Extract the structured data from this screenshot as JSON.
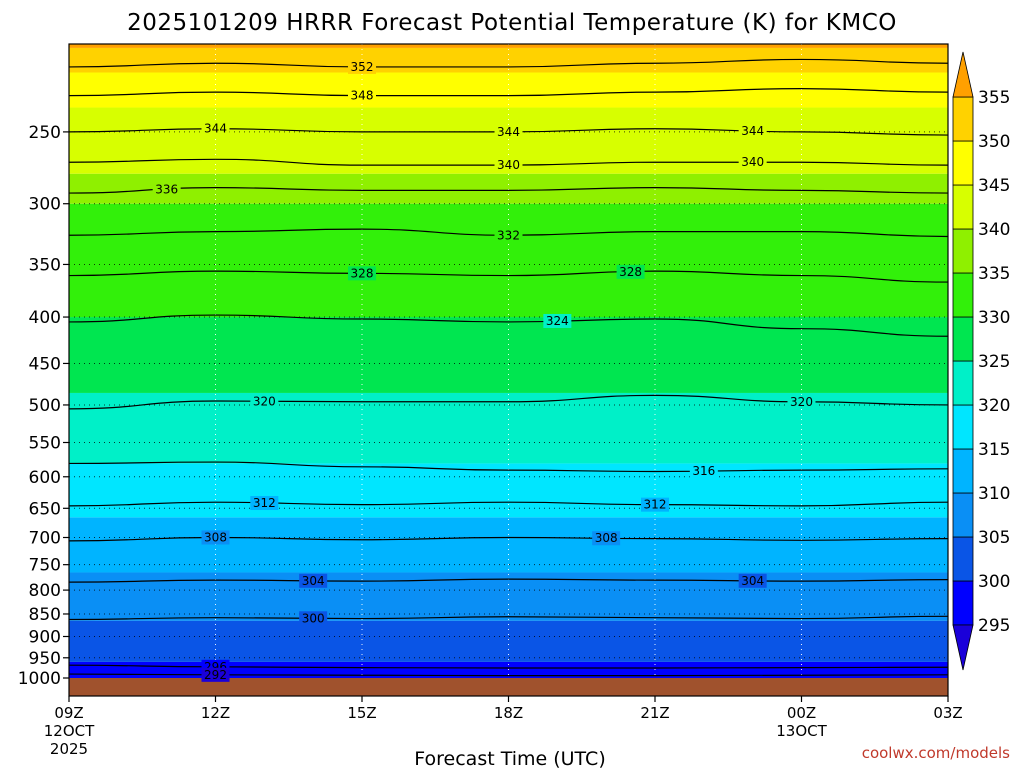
{
  "chart_data": {
    "type": "time-height contour",
    "title": "2025101209 HRRR Forecast Potential Temperature (K) for KMCO",
    "xlabel": "Forecast Time (UTC)",
    "ylabel": "",
    "credit": "coolwx.com/models",
    "x_hours": [
      0,
      18
    ],
    "x_ticks": [
      {
        "hour": 0,
        "label": "09Z",
        "sub1": "12OCT",
        "sub2": "2025"
      },
      {
        "hour": 3,
        "label": "12Z",
        "sub1": "",
        "sub2": ""
      },
      {
        "hour": 6,
        "label": "15Z",
        "sub1": "",
        "sub2": ""
      },
      {
        "hour": 9,
        "label": "18Z",
        "sub1": "",
        "sub2": ""
      },
      {
        "hour": 12,
        "label": "21Z",
        "sub1": "",
        "sub2": ""
      },
      {
        "hour": 15,
        "label": "00Z",
        "sub1": "13OCT",
        "sub2": ""
      },
      {
        "hour": 18,
        "label": "03Z",
        "sub1": "",
        "sub2": ""
      }
    ],
    "y_pressure_top_hpa": 200,
    "y_ticks": [
      {
        "p": 250,
        "label": "250"
      },
      {
        "p": 300,
        "label": "300"
      },
      {
        "p": 350,
        "label": "350"
      },
      {
        "p": 400,
        "label": "400"
      },
      {
        "p": 450,
        "label": "450"
      },
      {
        "p": 500,
        "label": "500"
      },
      {
        "p": 550,
        "label": "550"
      },
      {
        "p": 600,
        "label": "600"
      },
      {
        "p": 650,
        "label": "650"
      },
      {
        "p": 700,
        "label": "700"
      },
      {
        "p": 750,
        "label": "750"
      },
      {
        "p": 800,
        "label": "800"
      },
      {
        "p": 850,
        "label": "850"
      },
      {
        "p": 900,
        "label": "900"
      },
      {
        "p": 950,
        "label": "950"
      },
      {
        "p": 1000,
        "label": "1000"
      }
    ],
    "colorbar": {
      "levels": [
        295,
        300,
        305,
        310,
        315,
        320,
        325,
        330,
        335,
        340,
        345,
        350,
        355
      ],
      "labels": [
        "295",
        "300",
        "305",
        "310",
        "315",
        "320",
        "325",
        "330",
        "335",
        "340",
        "345",
        "350",
        "355"
      ],
      "colors": [
        "#1a00d9",
        "#0000ff",
        "#0a55e6",
        "#0a8ff5",
        "#00b4ff",
        "#00e6ff",
        "#00f0c8",
        "#00e650",
        "#32f00a",
        "#8ff000",
        "#d7ff00",
        "#ffff00",
        "#ffd200",
        "#ffa000"
      ]
    },
    "fill_bands": [
      {
        "theta": 297,
        "p_bottom": 1000,
        "p_top": 960
      },
      {
        "theta": 302,
        "p_bottom": 960,
        "p_top": 865
      },
      {
        "theta": 307,
        "p_bottom": 865,
        "p_top": 765
      },
      {
        "theta": 312,
        "p_bottom": 765,
        "p_top": 665
      },
      {
        "theta": 317,
        "p_bottom": 665,
        "p_top": 580
      },
      {
        "theta": 322,
        "p_bottom": 580,
        "p_top": 485
      },
      {
        "theta": 327,
        "p_bottom": 485,
        "p_top": 400
      },
      {
        "theta": 332,
        "p_bottom": 400,
        "p_top": 300
      },
      {
        "theta": 337,
        "p_bottom": 300,
        "p_top": 278
      },
      {
        "theta": 342,
        "p_bottom": 278,
        "p_top": 235
      },
      {
        "theta": 347,
        "p_bottom": 235,
        "p_top": 215
      },
      {
        "theta": 352,
        "p_bottom": 215,
        "p_top": 202
      },
      {
        "theta": 357,
        "p_bottom": 202,
        "p_top": 200
      }
    ],
    "ground_band": {
      "p_bottom": 1015,
      "p_top": 1000,
      "color": "#a0522d"
    },
    "isentropes_K": [
      {
        "theta": 292,
        "p": [
          990,
          992,
          993,
          994,
          994,
          993,
          992
        ]
      },
      {
        "theta": 296,
        "p": [
          968,
          972,
          974,
          975,
          975,
          974,
          973
        ]
      },
      {
        "theta": 300,
        "p": [
          862,
          858,
          860,
          856,
          858,
          860,
          855
        ]
      },
      {
        "theta": 304,
        "p": [
          784,
          780,
          782,
          778,
          780,
          782,
          779
        ]
      },
      {
        "theta": 308,
        "p": [
          706,
          700,
          704,
          700,
          702,
          705,
          702
        ]
      },
      {
        "theta": 312,
        "p": [
          646,
          640,
          644,
          640,
          644,
          646,
          640
        ]
      },
      {
        "theta": 316,
        "p": [
          580,
          578,
          585,
          590,
          592,
          590,
          588
        ]
      },
      {
        "theta": 320,
        "p": [
          505,
          495,
          496,
          496,
          488,
          496,
          500
        ]
      },
      {
        "theta": 324,
        "p": [
          405,
          398,
          402,
          405,
          402,
          412,
          420
        ]
      },
      {
        "theta": 328,
        "p": [
          360,
          356,
          358,
          360,
          356,
          360,
          366
        ]
      },
      {
        "theta": 332,
        "p": [
          325,
          322,
          320,
          325,
          322,
          322,
          326
        ]
      },
      {
        "theta": 336,
        "p": [
          292,
          288,
          290,
          290,
          288,
          290,
          292
        ]
      },
      {
        "theta": 340,
        "p": [
          270,
          268,
          272,
          272,
          270,
          270,
          272
        ]
      },
      {
        "theta": 344,
        "p": [
          250,
          248,
          250,
          250,
          248,
          250,
          252
        ]
      },
      {
        "theta": 348,
        "p": [
          228,
          226,
          228,
          228,
          226,
          224,
          226
        ]
      },
      {
        "theta": 352,
        "p": [
          212,
          210,
          212,
          212,
          210,
          208,
          210
        ]
      }
    ],
    "contour_labels": [
      {
        "text": "352",
        "theta": 352,
        "hour": 6.0
      },
      {
        "text": "348",
        "theta": 348,
        "hour": 6.0
      },
      {
        "text": "344",
        "theta": 344,
        "hour": 3.0
      },
      {
        "text": "344",
        "theta": 344,
        "hour": 9.0
      },
      {
        "text": "344",
        "theta": 344,
        "hour": 14.0
      },
      {
        "text": "340",
        "theta": 340,
        "hour": 9.0
      },
      {
        "text": "340",
        "theta": 340,
        "hour": 14.0
      },
      {
        "text": "336",
        "theta": 336,
        "hour": 2.0
      },
      {
        "text": "332",
        "theta": 332,
        "hour": 9.0
      },
      {
        "text": "328",
        "theta": 328,
        "hour": 6.0
      },
      {
        "text": "328",
        "theta": 328,
        "hour": 11.5
      },
      {
        "text": "324",
        "theta": 324,
        "hour": 10.0
      },
      {
        "text": "320",
        "theta": 320,
        "hour": 4.0
      },
      {
        "text": "320",
        "theta": 320,
        "hour": 15.0
      },
      {
        "text": "316",
        "theta": 316,
        "hour": 13.0
      },
      {
        "text": "312",
        "theta": 312,
        "hour": 4.0
      },
      {
        "text": "312",
        "theta": 312,
        "hour": 12.0
      },
      {
        "text": "308",
        "theta": 308,
        "hour": 3.0
      },
      {
        "text": "308",
        "theta": 308,
        "hour": 11.0
      },
      {
        "text": "304",
        "theta": 304,
        "hour": 5.0
      },
      {
        "text": "304",
        "theta": 304,
        "hour": 14.0
      },
      {
        "text": "300",
        "theta": 300,
        "hour": 5.0
      },
      {
        "text": "296",
        "theta": 296,
        "hour": 3.0
      },
      {
        "text": "292",
        "theta": 292,
        "hour": 3.0
      }
    ],
    "gridlines": "dotted"
  }
}
